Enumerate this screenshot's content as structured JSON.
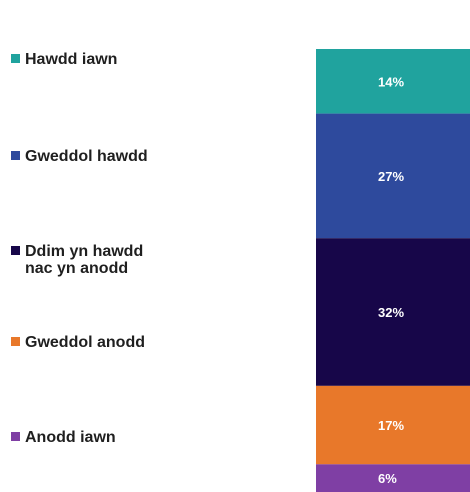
{
  "chart_data": {
    "type": "bar",
    "orientation": "vertical-stacked",
    "categories": [
      ""
    ],
    "series": [
      {
        "name": "Hawdd iawn",
        "values": [
          14
        ],
        "label": "14%",
        "color": "#20a39e"
      },
      {
        "name": "Gweddol hawdd",
        "values": [
          27
        ],
        "label": "27%",
        "color": "#2e4a9d"
      },
      {
        "name": "Ddim yn hawdd nac yn anodd",
        "name_lines": [
          "Ddim yn hawdd",
          "nac yn anodd"
        ],
        "values": [
          32
        ],
        "label": "32%",
        "color": "#170649"
      },
      {
        "name": "Gweddol anodd",
        "values": [
          17
        ],
        "label": "17%",
        "color": "#e8782a"
      },
      {
        "name": "Anodd iawn",
        "values": [
          6
        ],
        "label": "6%",
        "color": "#7f3fa4"
      }
    ],
    "ylim": [
      0,
      100
    ],
    "legend": "left",
    "grid": false,
    "title": "",
    "xlabel": "",
    "ylabel": ""
  }
}
